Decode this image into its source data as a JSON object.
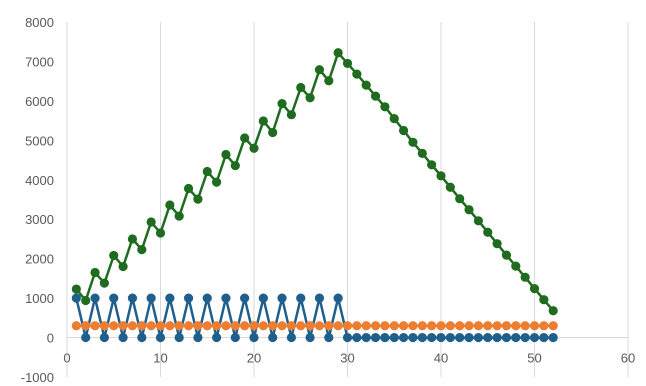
{
  "chart_data": {
    "type": "scatter",
    "title": "",
    "xlabel": "",
    "ylabel": "",
    "xlim": [
      0,
      60
    ],
    "ylim": [
      -1000,
      8000
    ],
    "x_ticks": [
      0,
      10,
      20,
      30,
      40,
      50,
      60
    ],
    "y_ticks": [
      -1000,
      0,
      1000,
      2000,
      3000,
      4000,
      5000,
      6000,
      7000,
      8000
    ],
    "grid": "vertical",
    "legend": "none",
    "line_style": "lines with markers",
    "series": [
      {
        "color": "#1F6B1F",
        "points": [
          [
            1,
            1230
          ],
          [
            2,
            940
          ],
          [
            3,
            1650
          ],
          [
            4,
            1380
          ],
          [
            5,
            2080
          ],
          [
            6,
            1800
          ],
          [
            7,
            2500
          ],
          [
            8,
            2230
          ],
          [
            9,
            2930
          ],
          [
            10,
            2650
          ],
          [
            11,
            3360
          ],
          [
            12,
            3080
          ],
          [
            13,
            3780
          ],
          [
            14,
            3510
          ],
          [
            15,
            4210
          ],
          [
            16,
            3940
          ],
          [
            17,
            4640
          ],
          [
            18,
            4360
          ],
          [
            19,
            5060
          ],
          [
            20,
            4800
          ],
          [
            21,
            5490
          ],
          [
            22,
            5200
          ],
          [
            23,
            5930
          ],
          [
            24,
            5650
          ],
          [
            25,
            6340
          ],
          [
            26,
            6080
          ],
          [
            27,
            6790
          ],
          [
            28,
            6510
          ],
          [
            29,
            7220
          ],
          [
            30,
            6950
          ],
          [
            31,
            6680
          ],
          [
            32,
            6400
          ],
          [
            33,
            6120
          ],
          [
            34,
            5850
          ],
          [
            35,
            5550
          ],
          [
            36,
            5250
          ],
          [
            37,
            4950
          ],
          [
            38,
            4670
          ],
          [
            39,
            4380
          ],
          [
            40,
            4100
          ],
          [
            41,
            3810
          ],
          [
            42,
            3520
          ],
          [
            43,
            3240
          ],
          [
            44,
            2960
          ],
          [
            45,
            2670
          ],
          [
            46,
            2380
          ],
          [
            47,
            2090
          ],
          [
            48,
            1810
          ],
          [
            49,
            1530
          ],
          [
            50,
            1240
          ],
          [
            51,
            960
          ],
          [
            52,
            680
          ]
        ]
      },
      {
        "color": "#1F5F8B",
        "points": [
          [
            1,
            1000
          ],
          [
            2,
            0
          ],
          [
            3,
            1000
          ],
          [
            4,
            0
          ],
          [
            5,
            1000
          ],
          [
            6,
            0
          ],
          [
            7,
            1000
          ],
          [
            8,
            0
          ],
          [
            9,
            1000
          ],
          [
            10,
            0
          ],
          [
            11,
            1000
          ],
          [
            12,
            0
          ],
          [
            13,
            1000
          ],
          [
            14,
            0
          ],
          [
            15,
            1000
          ],
          [
            16,
            0
          ],
          [
            17,
            1000
          ],
          [
            18,
            0
          ],
          [
            19,
            1000
          ],
          [
            20,
            0
          ],
          [
            21,
            1000
          ],
          [
            22,
            0
          ],
          [
            23,
            1000
          ],
          [
            24,
            0
          ],
          [
            25,
            1000
          ],
          [
            26,
            0
          ],
          [
            27,
            1000
          ],
          [
            28,
            0
          ],
          [
            29,
            1000
          ],
          [
            30,
            0
          ],
          [
            31,
            0
          ],
          [
            32,
            0
          ],
          [
            33,
            0
          ],
          [
            34,
            0
          ],
          [
            35,
            0
          ],
          [
            36,
            0
          ],
          [
            37,
            0
          ],
          [
            38,
            0
          ],
          [
            39,
            0
          ],
          [
            40,
            0
          ],
          [
            41,
            0
          ],
          [
            42,
            0
          ],
          [
            43,
            0
          ],
          [
            44,
            0
          ],
          [
            45,
            0
          ],
          [
            46,
            0
          ],
          [
            47,
            0
          ],
          [
            48,
            0
          ],
          [
            49,
            0
          ],
          [
            50,
            0
          ],
          [
            51,
            0
          ],
          [
            52,
            0
          ]
        ]
      },
      {
        "color": "#ED7D31",
        "points": [
          [
            1,
            300
          ],
          [
            2,
            300
          ],
          [
            3,
            300
          ],
          [
            4,
            300
          ],
          [
            5,
            300
          ],
          [
            6,
            300
          ],
          [
            7,
            300
          ],
          [
            8,
            300
          ],
          [
            9,
            300
          ],
          [
            10,
            300
          ],
          [
            11,
            300
          ],
          [
            12,
            300
          ],
          [
            13,
            300
          ],
          [
            14,
            300
          ],
          [
            15,
            300
          ],
          [
            16,
            300
          ],
          [
            17,
            300
          ],
          [
            18,
            300
          ],
          [
            19,
            300
          ],
          [
            20,
            300
          ],
          [
            21,
            300
          ],
          [
            22,
            300
          ],
          [
            23,
            300
          ],
          [
            24,
            300
          ],
          [
            25,
            300
          ],
          [
            26,
            300
          ],
          [
            27,
            300
          ],
          [
            28,
            300
          ],
          [
            29,
            300
          ],
          [
            30,
            300
          ],
          [
            31,
            300
          ],
          [
            32,
            300
          ],
          [
            33,
            300
          ],
          [
            34,
            300
          ],
          [
            35,
            300
          ],
          [
            36,
            300
          ],
          [
            37,
            300
          ],
          [
            38,
            300
          ],
          [
            39,
            300
          ],
          [
            40,
            300
          ],
          [
            41,
            300
          ],
          [
            42,
            300
          ],
          [
            43,
            300
          ],
          [
            44,
            300
          ],
          [
            45,
            300
          ],
          [
            46,
            300
          ],
          [
            47,
            300
          ],
          [
            48,
            300
          ],
          [
            49,
            300
          ],
          [
            50,
            300
          ],
          [
            51,
            300
          ],
          [
            52,
            300
          ]
        ]
      }
    ]
  }
}
